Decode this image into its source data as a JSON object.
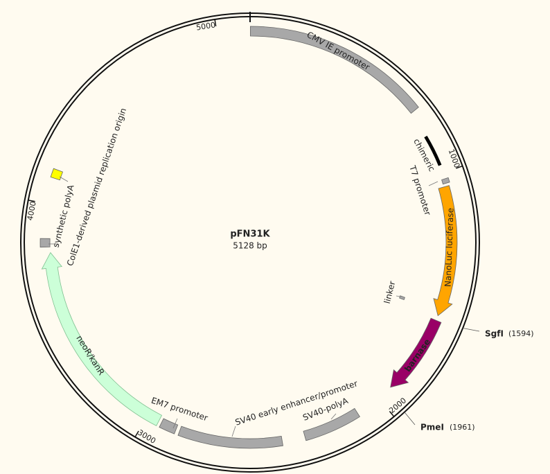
{
  "plasmid": {
    "name": "pFN31K",
    "length": 5128,
    "length_label": "5128 bp",
    "ticks": [
      1000,
      2000,
      3000,
      4000,
      5000
    ],
    "features": [
      {
        "name": "CMV IE promoter",
        "start": 1,
        "end": 730,
        "color": "#a8a8a8",
        "arrow": false
      },
      {
        "name": "chimeric",
        "start": 840,
        "end": 966,
        "color": "#000000",
        "arrow": false
      },
      {
        "name": "T7 promoter",
        "start": 1024,
        "end": 1042,
        "color": "#a8a8a8",
        "arrow": false
      },
      {
        "name": "NanoLuc luciferase",
        "start": 1054,
        "end": 1585,
        "color": "#ffa500",
        "arrow": true
      },
      {
        "name": "linker",
        "start": 1560,
        "end": 1572,
        "color": "#a8a8a8",
        "arrow": false
      },
      {
        "name": "barnase",
        "start": 1605,
        "end": 1935,
        "color": "#990066",
        "arrow": true
      },
      {
        "name": "SV40-polyA",
        "start": 2105,
        "end": 2339,
        "color": "#a8a8a8",
        "arrow": false
      },
      {
        "name": "SV40 early enhancer/promoter",
        "start": 2433,
        "end": 2856,
        "color": "#a8a8a8",
        "arrow": false
      },
      {
        "name": "EM7 promoter",
        "start": 2872,
        "end": 2937,
        "color": "#a8a8a8",
        "arrow": false
      },
      {
        "name": "neoR/kanR",
        "start": 2950,
        "end": 3805,
        "color": "#ccffd8",
        "arrow": true
      },
      {
        "name": "ColE1-derived plasmid replication origin",
        "start": 3828,
        "end": 3862,
        "color": "#a8a8a8",
        "arrow": false
      },
      {
        "name": "synthetic polyA",
        "start": 4105,
        "end": 4140,
        "color": "#ffff00",
        "arrow": false
      }
    ],
    "sites": [
      {
        "name": "SgfI",
        "position": 1594,
        "position_label": "(1594)"
      },
      {
        "name": "PmeI",
        "position": 1961,
        "position_label": "(1961)"
      }
    ]
  }
}
